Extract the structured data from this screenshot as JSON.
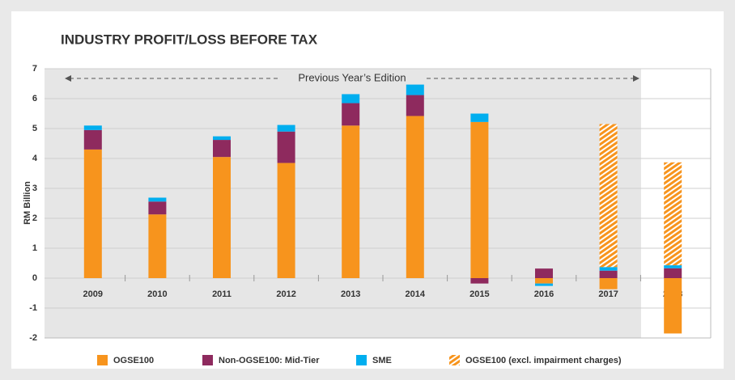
{
  "chart_data": {
    "type": "bar",
    "stacked": true,
    "title": "INDUSTRY PROFIT/LOSS BEFORE TAX",
    "y_label": "RM Billion",
    "annotation": "Previous Year’s Edition",
    "categories": [
      "2009",
      "2010",
      "2011",
      "2012",
      "2013",
      "2014",
      "2015",
      "2016",
      "2017",
      "2018"
    ],
    "series": [
      {
        "name": "OGSE100",
        "color": "#f7941d",
        "values": [
          4.3,
          2.13,
          4.05,
          3.85,
          5.1,
          5.42,
          5.22,
          -0.18,
          -0.37,
          -1.85
        ]
      },
      {
        "name": "Non-OGSE100: Mid-Tier",
        "color": "#8e2a5e",
        "values": [
          0.65,
          0.43,
          0.57,
          1.05,
          0.75,
          0.7,
          -0.18,
          0.32,
          0.25,
          0.33
        ]
      },
      {
        "name": "SME",
        "color": "#00aeef",
        "values": [
          0.15,
          0.13,
          0.12,
          0.22,
          0.3,
          0.35,
          0.28,
          -0.08,
          0.12,
          0.1
        ]
      },
      {
        "name": "OGSE100 (excl. impairment charges)",
        "color": "#f7941d",
        "hatched": true,
        "values": [
          null,
          null,
          null,
          null,
          null,
          null,
          null,
          null,
          4.78,
          3.44
        ]
      }
    ],
    "ylim": [
      -2,
      7
    ],
    "yticks": [
      -2,
      -1,
      0,
      1,
      2,
      3,
      4,
      5,
      6,
      7
    ],
    "grid": true
  }
}
